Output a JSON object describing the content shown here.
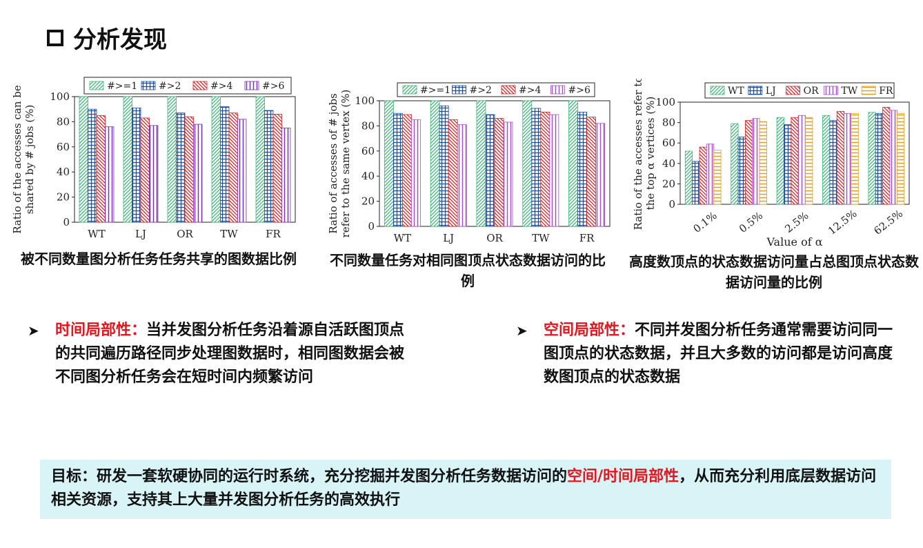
{
  "page": {
    "title": "分析发现"
  },
  "captions": [
    "被不同数量图分析任务任务共享的图数据比例",
    "不同数量任务对相同图顶点状态数据访问的比例",
    "高度数顶点的状态数据访问量占总图顶点状态数据访问量的比例"
  ],
  "bullets": [
    {
      "head": "时间局部性：",
      "body": "当并发图分析任务沿着源自活跃图顶点的共同遍历路径同步处理图数据时，相同图数据会被不同图分析任务会在短时间内频繁访问"
    },
    {
      "head": "空间局部性：",
      "body": "不同并发图分析任务通常需要访问同一图顶点的状态数据，并且大多数的访问都是访问高度数图顶点的状态数据"
    }
  ],
  "goal": {
    "prefix": "目标：研发一套软硬协同的运行时系统，充分挖掘并发图分析任务数据访问的",
    "highlight": "空间/时间局部性",
    "suffix": "，从而充分利用底层数据访问相关资源，支持其上大量并发图分析任务的高效执行"
  },
  "colors": {
    "accent": "#e8131b",
    "goal_bg": "#d8f4f6"
  },
  "chart_data": [
    {
      "type": "bar",
      "ylabel": "Ratio of the accesses can be shared by # jobs (%)",
      "xlabel": "",
      "ylim": [
        0,
        100
      ],
      "yticks": [
        0,
        20,
        40,
        60,
        80,
        100
      ],
      "categories": [
        "WT",
        "LJ",
        "OR",
        "TW",
        "FR"
      ],
      "legend_placement": "top",
      "series": [
        {
          "name": "#>=1",
          "values": [
            100,
            100,
            100,
            100,
            100
          ],
          "color": "#3cb878",
          "pattern": "diag"
        },
        {
          "name": "#>2",
          "values": [
            90,
            91,
            87,
            92,
            89
          ],
          "color": "#1f4e9f",
          "pattern": "grid"
        },
        {
          "name": "#>4",
          "values": [
            85,
            83,
            84,
            87,
            86
          ],
          "color": "#d62020",
          "pattern": "diag2"
        },
        {
          "name": "#>6",
          "values": [
            76,
            77,
            78,
            82,
            75
          ],
          "color": "#7a2fb8",
          "pattern": "vert"
        }
      ]
    },
    {
      "type": "bar",
      "ylabel": "Ratio of accesses of # jobs refer to the same vertex (%)",
      "xlabel": "",
      "ylim": [
        0,
        100
      ],
      "yticks": [
        0,
        20,
        40,
        60,
        80,
        100
      ],
      "categories": [
        "WT",
        "LJ",
        "OR",
        "TW",
        "FR"
      ],
      "legend_placement": "top",
      "series": [
        {
          "name": "#>=1",
          "values": [
            100,
            100,
            100,
            100,
            100
          ],
          "color": "#3cb878",
          "pattern": "diag"
        },
        {
          "name": "#>2",
          "values": [
            90,
            96,
            89,
            94,
            91
          ],
          "color": "#1f4e9f",
          "pattern": "grid"
        },
        {
          "name": "#>4",
          "values": [
            89,
            85,
            86,
            91,
            87
          ],
          "color": "#d62020",
          "pattern": "diag2"
        },
        {
          "name": "#>6",
          "values": [
            85,
            81,
            83,
            89,
            82
          ],
          "color": "#a44fd0",
          "pattern": "vert"
        }
      ]
    },
    {
      "type": "bar",
      "ylabel": "Ratio of the accesses refer to the top α vertices (%)",
      "xlabel": "Value of α",
      "ylim": [
        0,
        100
      ],
      "yticks": [
        0,
        20,
        40,
        60,
        80,
        100
      ],
      "categories": [
        "0.1%",
        "0.5%",
        "2.5%",
        "12.5%",
        "62.5%"
      ],
      "legend_placement": "top",
      "series": [
        {
          "name": "WT",
          "values": [
            52,
            79,
            85,
            87,
            90
          ],
          "color": "#3cb878",
          "pattern": "diag"
        },
        {
          "name": "LJ",
          "values": [
            42,
            66,
            78,
            82,
            89
          ],
          "color": "#1f4e9f",
          "pattern": "grid"
        },
        {
          "name": "OR",
          "values": [
            56,
            82,
            85,
            91,
            95
          ],
          "color": "#d62020",
          "pattern": "diag2"
        },
        {
          "name": "TW",
          "values": [
            59,
            84,
            87,
            89,
            92
          ],
          "color": "#a44fd0",
          "pattern": "vert"
        },
        {
          "name": "FR",
          "values": [
            53,
            81,
            85,
            89,
            89
          ],
          "color": "#e0a020",
          "pattern": "horiz"
        }
      ]
    }
  ]
}
